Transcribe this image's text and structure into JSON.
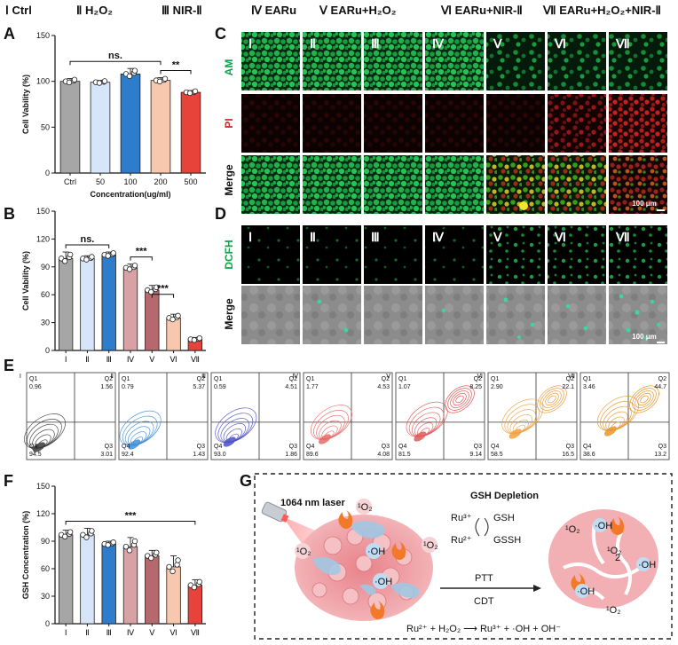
{
  "legend": [
    {
      "numeral": "Ⅰ",
      "label": "Ctrl"
    },
    {
      "numeral": "Ⅱ",
      "label": "H₂O₂"
    },
    {
      "numeral": "Ⅲ",
      "label": "NIR-Ⅱ"
    },
    {
      "numeral": "Ⅳ",
      "label": "EARu"
    },
    {
      "numeral": "Ⅴ",
      "label": "EARu+H₂O₂"
    },
    {
      "numeral": "Ⅵ",
      "label": "EARu+NIR-Ⅱ"
    },
    {
      "numeral": "Ⅶ",
      "label": "EARu+H₂O₂+NIR-Ⅱ"
    }
  ],
  "panels": {
    "a": "A",
    "b": "B",
    "c": "C",
    "d": "D",
    "e": "E",
    "f": "F",
    "g": "G"
  },
  "colors": {
    "gray": "#a6a6a6",
    "lightblue": "#d6e6f8",
    "blue": "#2e7dcc",
    "pink": "#d7a2a4",
    "mauve": "#b5696c",
    "peach": "#f8c8ae",
    "red": "#e8433a",
    "am_green": "#0fa34a",
    "pi_red": "#d42626"
  },
  "chart_data": [
    {
      "id": "A",
      "type": "bar",
      "categories": [
        "Ctrl",
        "50",
        "100",
        "200",
        "500"
      ],
      "values": [
        100,
        99,
        108,
        101,
        88
      ],
      "errors": [
        3,
        2,
        6,
        3,
        2
      ],
      "ylabel": "Cell Vability (%)",
      "xlabel": "Concentration(ug/ml)",
      "ylim": [
        0,
        150
      ],
      "yticks": [
        0,
        50,
        100,
        150
      ],
      "annotations": [
        {
          "text": "ns.",
          "from": 0,
          "to": 3
        },
        {
          "text": "**",
          "from": 3,
          "to": 4
        }
      ]
    },
    {
      "id": "B",
      "type": "bar",
      "categories": [
        "Ⅰ",
        "Ⅱ",
        "Ⅲ",
        "Ⅳ",
        "Ⅴ",
        "Ⅵ",
        "Ⅶ"
      ],
      "values": [
        99,
        99,
        103,
        89,
        65,
        35,
        12
      ],
      "errors": [
        7,
        3,
        3,
        4,
        5,
        4,
        2
      ],
      "ylabel": "Cell Vability (%)",
      "xlabel": "",
      "ylim": [
        0,
        150
      ],
      "yticks": [
        0,
        30,
        60,
        90,
        120,
        150
      ],
      "annotations": [
        {
          "text": "ns.",
          "from": 0,
          "to": 2
        },
        {
          "text": "***",
          "from": 3,
          "to": 4
        },
        {
          "text": "***",
          "from": 4,
          "to": 5
        }
      ]
    },
    {
      "id": "F",
      "type": "bar",
      "categories": [
        "Ⅰ",
        "Ⅱ",
        "Ⅲ",
        "Ⅳ",
        "Ⅴ",
        "Ⅵ",
        "Ⅶ"
      ],
      "values": [
        97,
        97,
        87,
        84,
        74,
        62,
        42
      ],
      "errors": [
        5,
        7,
        3,
        10,
        6,
        12,
        6
      ],
      "ylabel": "GSH Concentration (%)",
      "xlabel": "",
      "ylim": [
        0,
        150
      ],
      "yticks": [
        0,
        30,
        60,
        90,
        120,
        150
      ],
      "annotations": [
        {
          "text": "***",
          "from": 0,
          "to": 6
        }
      ]
    }
  ],
  "micrographs": {
    "columns": [
      "Ⅰ",
      "Ⅱ",
      "Ⅲ",
      "Ⅳ",
      "Ⅴ",
      "Ⅵ",
      "Ⅶ"
    ],
    "c_rows": [
      "AM",
      "PI",
      "Merge"
    ],
    "d_rows": [
      "DCFH",
      "Merge"
    ],
    "scale_c": "100 μm",
    "scale_d": "100 μm"
  },
  "flow": [
    {
      "n": "Ⅰ",
      "q1": "Q1",
      "q2": "Q2",
      "q3": "Q3",
      "q4": "Q4",
      "v1": "0.96",
      "v2": "1.56",
      "v3": "3.01",
      "v4": "94.5"
    },
    {
      "n": "Ⅱ",
      "q1": "Q1",
      "q2": "Q2",
      "q3": "Q3",
      "q4": "Q4",
      "v1": "0.79",
      "v2": "5.37",
      "v3": "1.43",
      "v4": "92.4"
    },
    {
      "n": "Ⅲ",
      "q1": "Q1",
      "q2": "Q2",
      "q3": "Q3",
      "q4": "Q4",
      "v1": "0.59",
      "v2": "4.51",
      "v3": "1.86",
      "v4": "93.0"
    },
    {
      "n": "Ⅳ",
      "q1": "Q1",
      "q2": "Q2",
      "q3": "Q3",
      "q4": "Q4",
      "v1": "1.77",
      "v2": "4.53",
      "v3": "4.08",
      "v4": "89.6"
    },
    {
      "n": "Ⅴ",
      "q1": "Q1",
      "q2": "Q2",
      "q3": "Q3",
      "q4": "Q4",
      "v1": "1.07",
      "v2": "8.25",
      "v3": "9.14",
      "v4": "81.5"
    },
    {
      "n": "Ⅵ",
      "q1": "Q1",
      "q2": "Q2",
      "q3": "Q3",
      "q4": "Q4",
      "v1": "2.90",
      "v2": "22.1",
      "v3": "16.5",
      "v4": "58.5"
    },
    {
      "n": "Ⅶ",
      "q1": "Q1",
      "q2": "Q2",
      "q3": "Q3",
      "q4": "Q4",
      "v1": "3.46",
      "v2": "44.7",
      "v3": "13.2",
      "v4": "38.6"
    }
  ],
  "schematic": {
    "laser": "1064 nm laser",
    "gsh_title": "GSH Depletion",
    "ru3": "Ru³⁺",
    "ru2": "Ru²⁺",
    "gsh": "GSH",
    "gssh": "GSSH",
    "ptt": "PTT",
    "cdt": "CDT",
    "equation": "Ru²⁺ + H₂O₂  ⟶ Ru³⁺ + ·OH + OH⁻",
    "singlet": "¹O₂",
    "hydroxyl": "·OH",
    "o2_sub": "2"
  }
}
